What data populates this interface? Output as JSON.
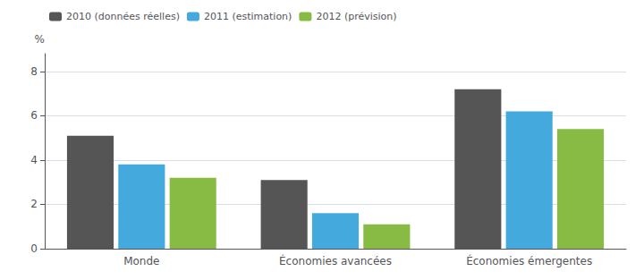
{
  "chart_data": {
    "type": "bar",
    "ylabel": "%",
    "categories": [
      "Monde",
      "Économies avancées",
      "Économies émergentes"
    ],
    "series": [
      {
        "name": "2010 (données réelles)",
        "color": "#555555",
        "values": [
          5.1,
          3.1,
          7.2
        ]
      },
      {
        "name": "2011 (estimation)",
        "color": "#44aadd",
        "values": [
          3.8,
          1.6,
          6.2
        ]
      },
      {
        "name": "2012 (prévision)",
        "color": "#88bb44",
        "values": [
          3.2,
          1.1,
          5.4
        ]
      }
    ],
    "ylim": [
      0,
      8.8
    ],
    "yticks": [
      0,
      2,
      4,
      6,
      8
    ],
    "grid": true,
    "legend": "upper left"
  }
}
